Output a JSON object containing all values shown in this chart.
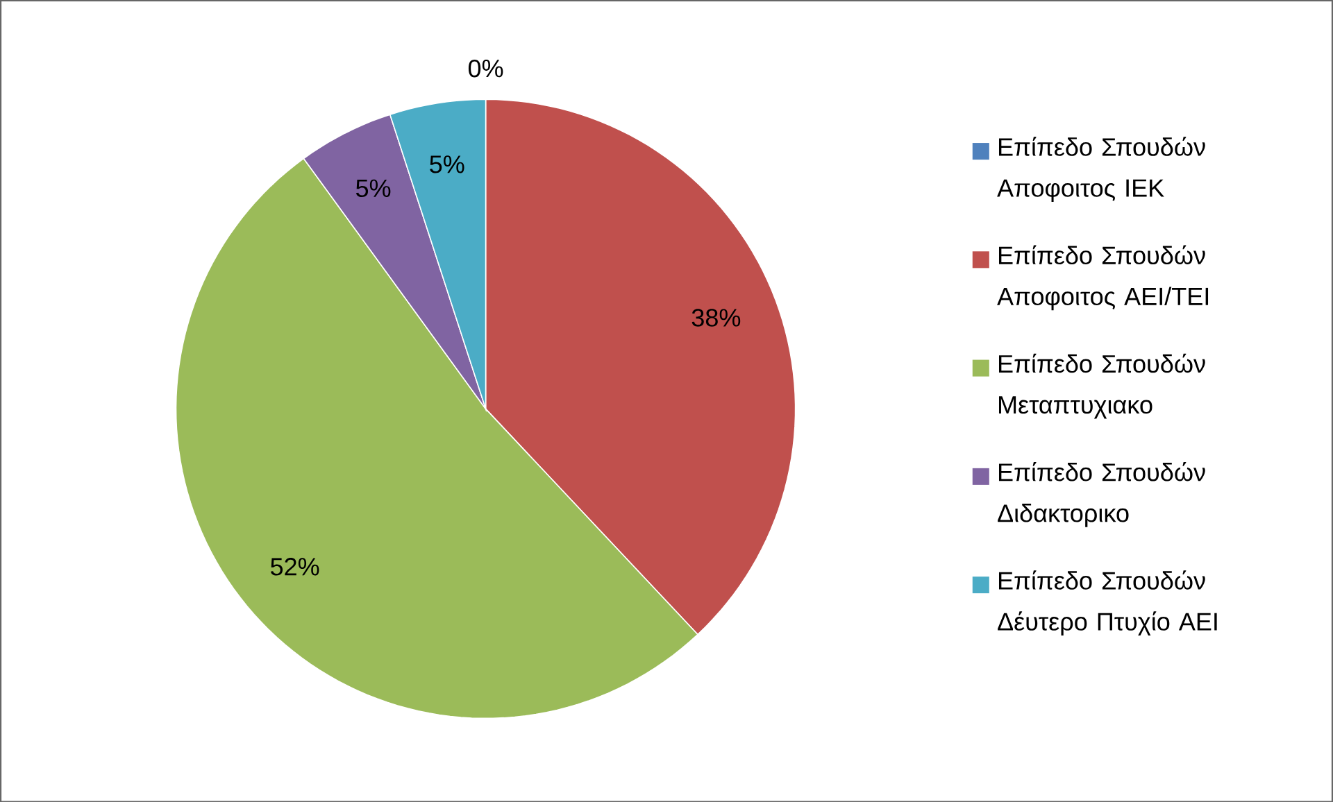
{
  "chart_data": {
    "type": "pie",
    "categories": [
      "Επίπεδο Σπουδών Αποφοιτος ΙΕΚ",
      "Επίπεδο Σπουδών Αποφοιτος ΑΕΙ/ΤΕΙ",
      "Επίπεδο Σπουδών Μεταπτυχιακο",
      "Επίπεδο Σπουδών Διδακτορικο",
      "Επίπεδο Σπουδών Δέυτερο Πτυχίο ΑΕΙ"
    ],
    "values": [
      0,
      38,
      52,
      5,
      5
    ],
    "colors": [
      "#4f81bd",
      "#c0504d",
      "#9bbb59",
      "#8064a2",
      "#4bacc6"
    ],
    "value_labels": [
      "0%",
      "38%",
      "52%",
      "5%",
      "5%"
    ],
    "legend": "right"
  }
}
